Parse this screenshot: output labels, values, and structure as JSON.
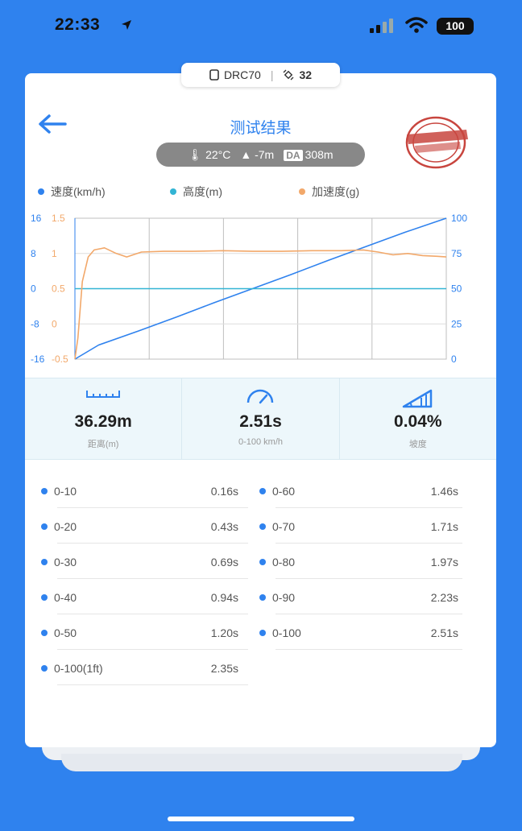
{
  "status_bar": {
    "time": "22:33",
    "battery": "100"
  },
  "device": {
    "name": "DRC70",
    "satellites": "32"
  },
  "header": {
    "title": "测试结果"
  },
  "conditions": {
    "temperature": "22°C",
    "altitude": "-7m",
    "da_label": "DA",
    "density_altitude": "308m"
  },
  "legend": [
    {
      "label": "速度(km/h)",
      "color": "#2f82ee"
    },
    {
      "label": "高度(m)",
      "color": "#32b4d4"
    },
    {
      "label": "加速度(g)",
      "color": "#f2a86a"
    }
  ],
  "chart_data": {
    "type": "line",
    "x_ticks": 5,
    "axes": {
      "height_ticks": [
        "16",
        "8",
        "0",
        "-8",
        "-16"
      ],
      "accel_ticks": [
        "1.5",
        "1",
        "0.5",
        "0",
        "-0.5"
      ],
      "speed_ticks": [
        "100",
        "75",
        "50",
        "25",
        "0"
      ],
      "height_range": [
        -16,
        16
      ],
      "accel_range": [
        -0.5,
        1.5
      ],
      "speed_range": [
        0,
        100
      ]
    },
    "series": [
      {
        "name": "速度(km/h)",
        "color": "#2f82ee",
        "x": [
          0,
          0.16,
          0.43,
          0.69,
          0.94,
          1.2,
          1.46,
          1.71,
          1.97,
          2.23,
          2.51
        ],
        "values": [
          0,
          10,
          20,
          30,
          40,
          50,
          60,
          70,
          80,
          90,
          100
        ]
      },
      {
        "name": "高度(m)",
        "color": "#32b4d4",
        "x": [
          0,
          2.51
        ],
        "values": [
          0,
          0
        ]
      },
      {
        "name": "加速度(g)",
        "color": "#f2a86a",
        "x": [
          0,
          0.02,
          0.05,
          0.09,
          0.13,
          0.2,
          0.28,
          0.35,
          0.45,
          0.6,
          0.8,
          1.0,
          1.2,
          1.4,
          1.6,
          1.8,
          1.95,
          2.05,
          2.15,
          2.25,
          2.35,
          2.45,
          2.51
        ],
        "values": [
          -0.5,
          -0.2,
          0.6,
          0.95,
          1.05,
          1.08,
          1.0,
          0.95,
          1.02,
          1.03,
          1.03,
          1.04,
          1.03,
          1.03,
          1.04,
          1.04,
          1.05,
          1.02,
          0.98,
          1.0,
          0.97,
          0.96,
          0.95
        ]
      }
    ]
  },
  "stats": [
    {
      "value": "36.29m",
      "label": "距离(m)"
    },
    {
      "value": "2.51s",
      "label": "0-100 km/h"
    },
    {
      "value": "0.04%",
      "label": "坡度"
    }
  ],
  "splits_left": [
    {
      "label": "0-10",
      "time": "0.16s"
    },
    {
      "label": "0-20",
      "time": "0.43s"
    },
    {
      "label": "0-30",
      "time": "0.69s"
    },
    {
      "label": "0-40",
      "time": "0.94s"
    },
    {
      "label": "0-50",
      "time": "1.20s"
    },
    {
      "label": "0-100(1ft)",
      "time": "2.35s"
    }
  ],
  "splits_right": [
    {
      "label": "0-60",
      "time": "1.46s"
    },
    {
      "label": "0-70",
      "time": "1.71s"
    },
    {
      "label": "0-80",
      "time": "1.97s"
    },
    {
      "label": "0-90",
      "time": "2.23s"
    },
    {
      "label": "0-100",
      "time": "2.51s"
    }
  ]
}
